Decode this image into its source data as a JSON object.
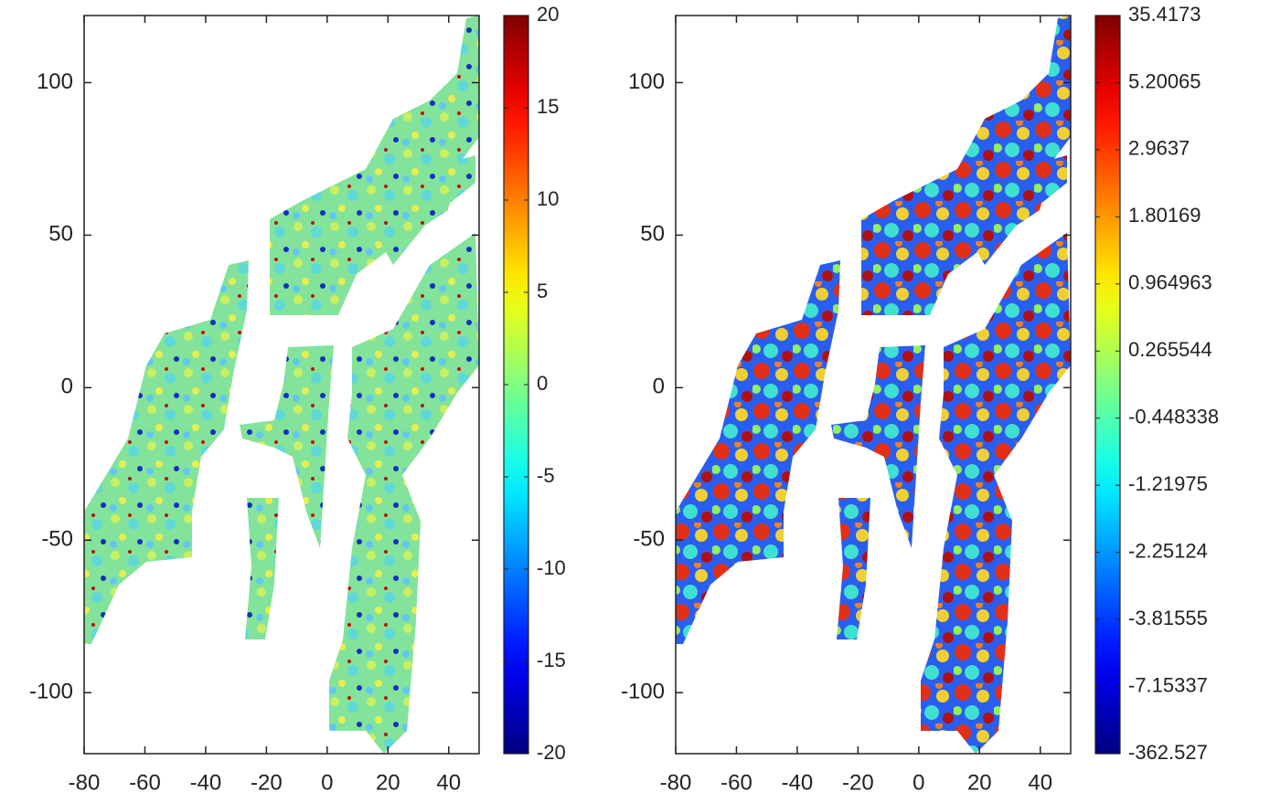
{
  "chart_data": [
    {
      "type": "heatmap",
      "xlim": [
        -80,
        50
      ],
      "ylim": [
        -120,
        122
      ],
      "xticks": [
        -80,
        -60,
        -40,
        -20,
        0,
        20,
        40
      ],
      "yticks": [
        -100,
        -50,
        0,
        50,
        100
      ],
      "colorbar": {
        "colormap": "jet",
        "scale": "linear",
        "lim": [
          -20,
          20
        ],
        "ticks": [
          -20,
          -15,
          -10,
          -5,
          0,
          5,
          10,
          15,
          20
        ]
      }
    },
    {
      "type": "heatmap",
      "xlim": [
        -80,
        50
      ],
      "ylim": [
        -120,
        122
      ],
      "xticks": [
        -80,
        -60,
        -40,
        -20,
        0,
        20,
        40
      ],
      "yticks": [
        -100,
        -50,
        0,
        50,
        100
      ],
      "colorbar": {
        "colormap": "jet",
        "scale": "quantile",
        "ticks": [
          -362.527,
          -7.15337,
          -3.81555,
          -2.25124,
          -1.21975,
          -0.448338,
          0.265544,
          0.964963,
          1.80169,
          2.9637,
          5.20065,
          35.4173
        ]
      }
    }
  ]
}
